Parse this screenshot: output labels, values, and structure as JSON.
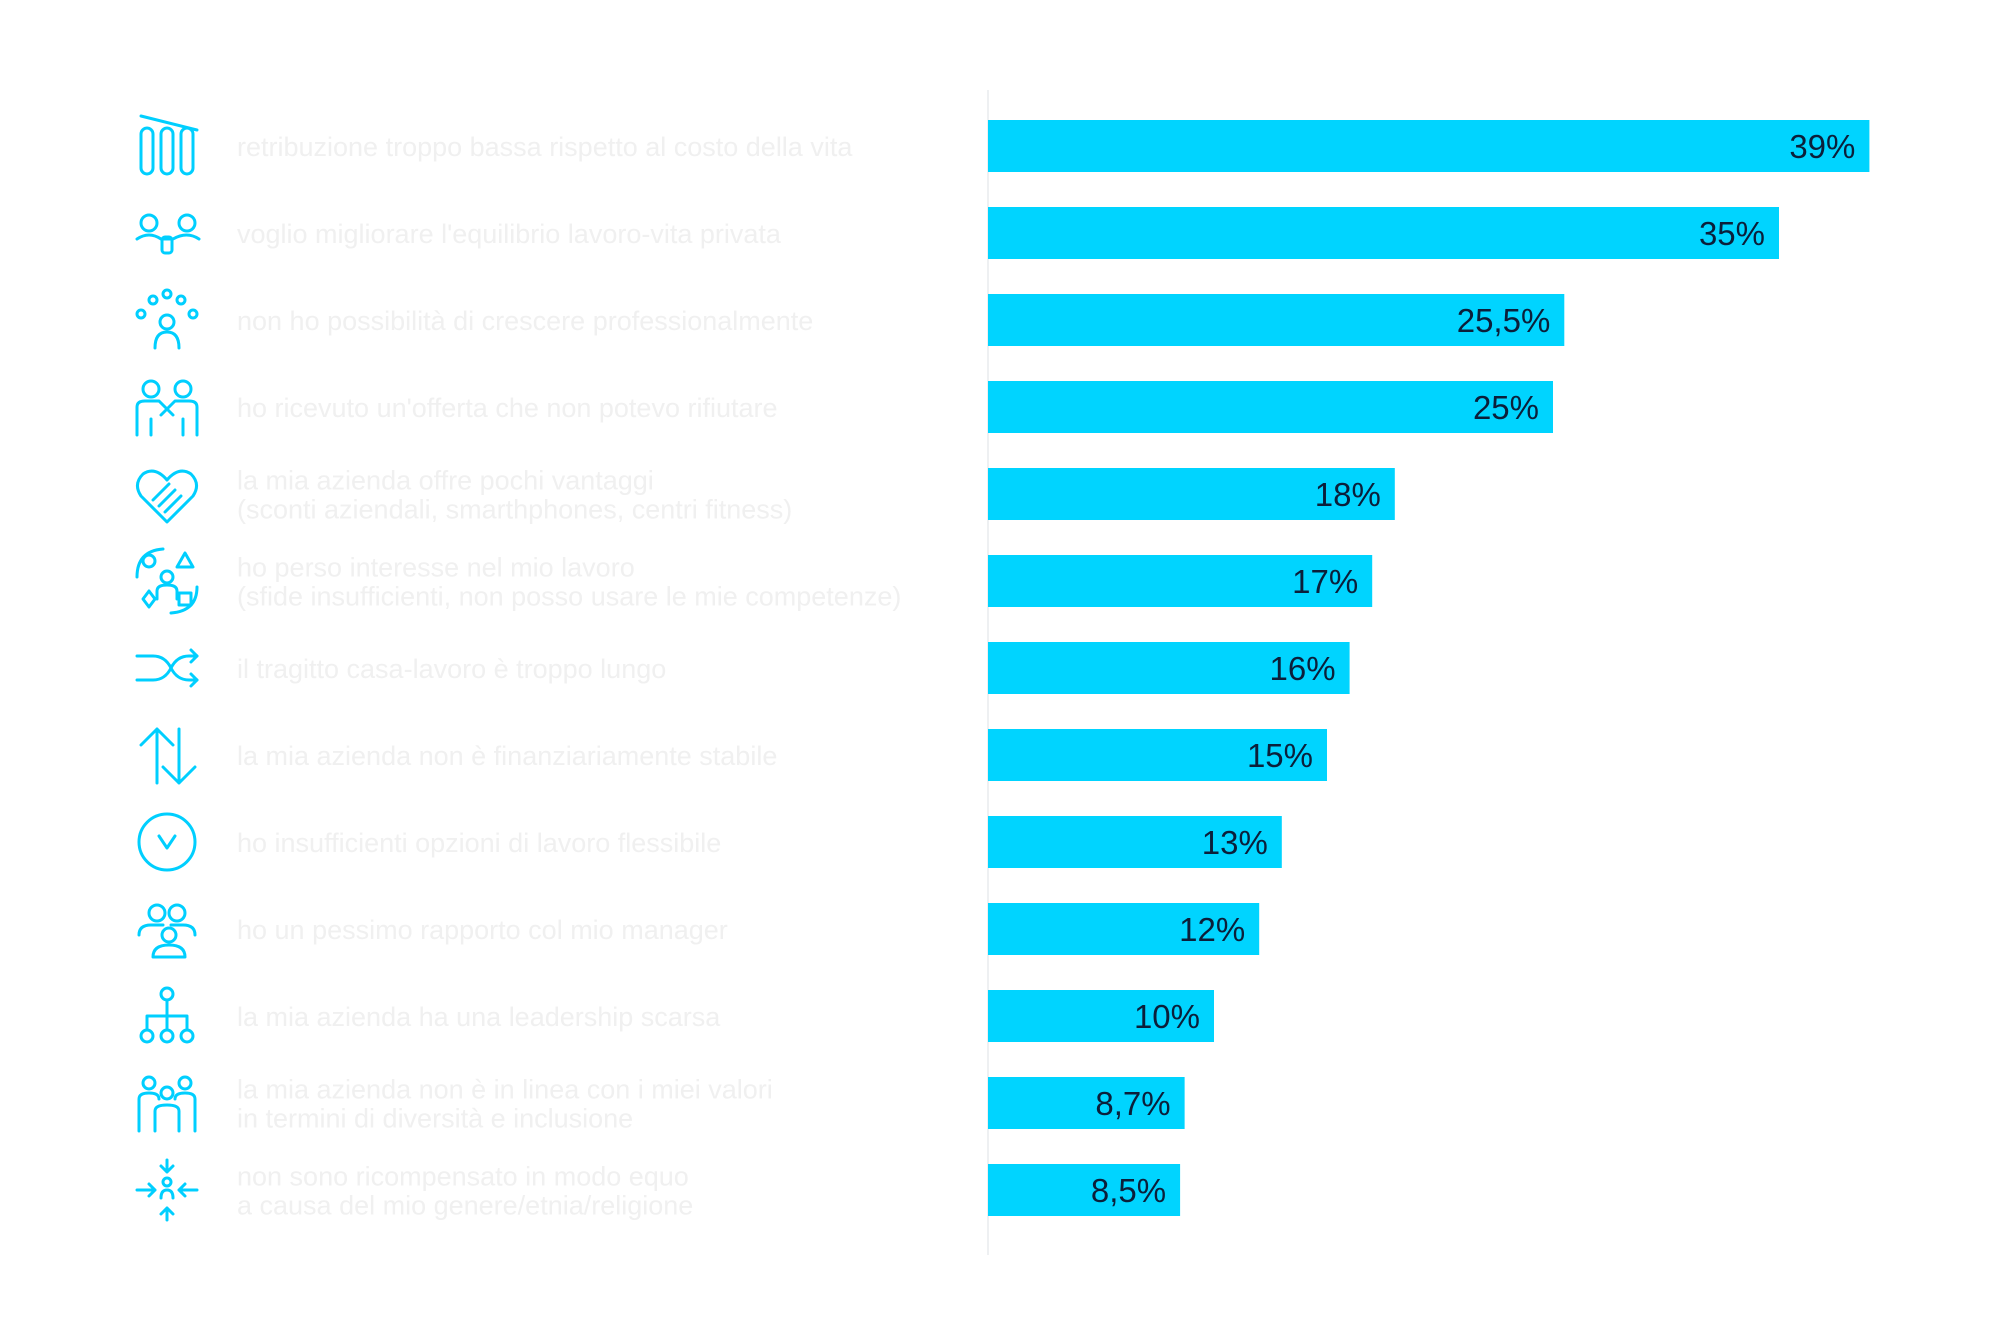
{
  "chart_data": {
    "type": "bar",
    "orientation": "horizontal",
    "categories": [
      [
        "retribuzione troppo bassa rispetto al costo della vita"
      ],
      [
        "voglio migliorare l'equilibrio lavoro-vita privata"
      ],
      [
        "non ho possibilità di crescere professionalmente"
      ],
      [
        "ho ricevuto un'offerta che non potevo rifiutare"
      ],
      [
        "la mia azienda offre pochi vantaggi",
        "(sconti aziendali, smarthphones, centri fitness)"
      ],
      [
        "ho perso interesse nel mio lavoro",
        "(sfide insufficienti, non posso usare le mie competenze)"
      ],
      [
        "il tragitto casa-lavoro è troppo lungo"
      ],
      [
        "la mia azienda non è finanziariamente stabile"
      ],
      [
        "ho insufficienti opzioni di lavoro flessibile"
      ],
      [
        "ho un pessimo rapporto col mio manager"
      ],
      [
        "la mia azienda ha una leadership scarsa"
      ],
      [
        "la mia azienda non è in linea con i miei valori",
        "in termini di diversità e inclusione"
      ],
      [
        "non sono ricompensato in modo equo",
        "a causa del mio genere/etnia/religione"
      ]
    ],
    "values": [
      39,
      35,
      25.5,
      25,
      18,
      17,
      16,
      15,
      13,
      12,
      10,
      8.7,
      8.5
    ],
    "value_labels": [
      "39%",
      "35%",
      "25,5%",
      "25%",
      "18%",
      "17%",
      "16%",
      "15%",
      "13%",
      "12%",
      "10%",
      "8,7%",
      "8,5%"
    ],
    "icons": [
      "declining-bars-icon",
      "work-life-balance-icon",
      "growth-people-icon",
      "handshake-people-icon",
      "heart-handshake-icon",
      "lost-interest-icon",
      "shuffle-arrows-icon",
      "up-down-arrows-icon",
      "clock-icon",
      "manager-relationship-icon",
      "hierarchy-icon",
      "diverse-group-icon",
      "converging-arrows-person-icon"
    ],
    "xlim": [
      0,
      40
    ],
    "grid": false,
    "legend": "none",
    "colors": {
      "bar": "#00d4ff",
      "icon": "#00cfff",
      "value_text": "#0b1f3a",
      "category_text": "#f0f0f0"
    }
  }
}
